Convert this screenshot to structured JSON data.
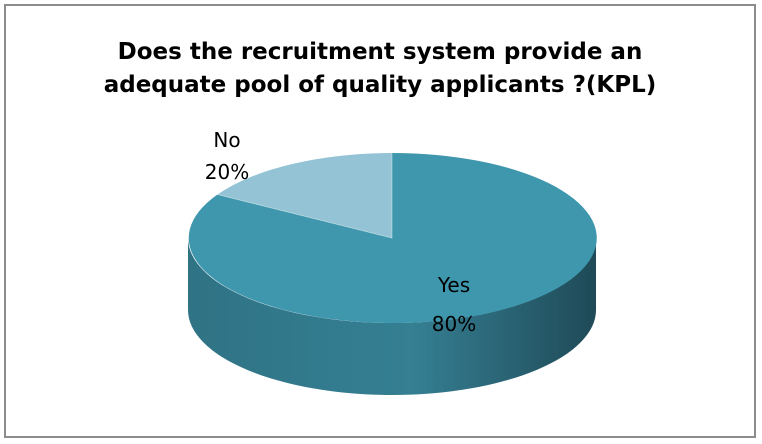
{
  "chart_data": {
    "type": "pie",
    "style": "3d",
    "title_lines": [
      "Does the recruitment system provide an",
      "adequate pool of quality applicants ?(KPL)"
    ],
    "categories": [
      "Yes",
      "No"
    ],
    "values": [
      80,
      20
    ],
    "value_labels": [
      "80%",
      "20%"
    ],
    "colors": {
      "Yes": "#3f97ad",
      "No": "#93c3d5"
    },
    "legend": "none",
    "data_labels": "category and percentage"
  }
}
